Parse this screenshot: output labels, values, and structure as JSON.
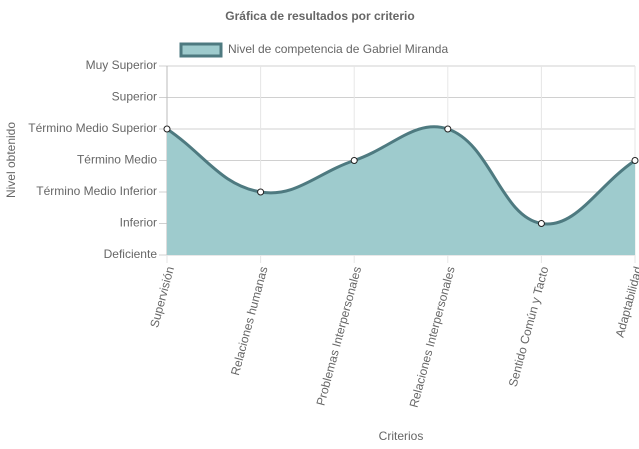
{
  "chart_data": {
    "type": "line",
    "title": "Gráfica de resultados por criterio",
    "x_label": "Criterios",
    "y_label": "Nivel obtenido",
    "categories": [
      "Supervisión",
      "Relaciones humanas",
      "Problemas Interpersonales",
      "Relaciones Interpersonales",
      "Sentido Común y Tacto",
      "Adaptabilidad"
    ],
    "series": [
      {
        "name": "Nivel de competencia de Gabriel Miranda",
        "color": "#4e7a80",
        "fill": "#9ecbcd",
        "values": [
          4,
          2,
          3,
          4,
          1,
          3
        ]
      }
    ],
    "ylim": [
      0,
      6
    ],
    "yticks": [
      {
        "value": 0,
        "label": "Deficiente"
      },
      {
        "value": 1,
        "label": "Inferior"
      },
      {
        "value": 2,
        "label": "Término Medio Inferior"
      },
      {
        "value": 3,
        "label": "Término Medio"
      },
      {
        "value": 4,
        "label": "Término Medio Superior"
      },
      {
        "value": 5,
        "label": "Superior"
      },
      {
        "value": 6,
        "label": "Muy Superior"
      }
    ],
    "grid": true,
    "legend": "top"
  }
}
